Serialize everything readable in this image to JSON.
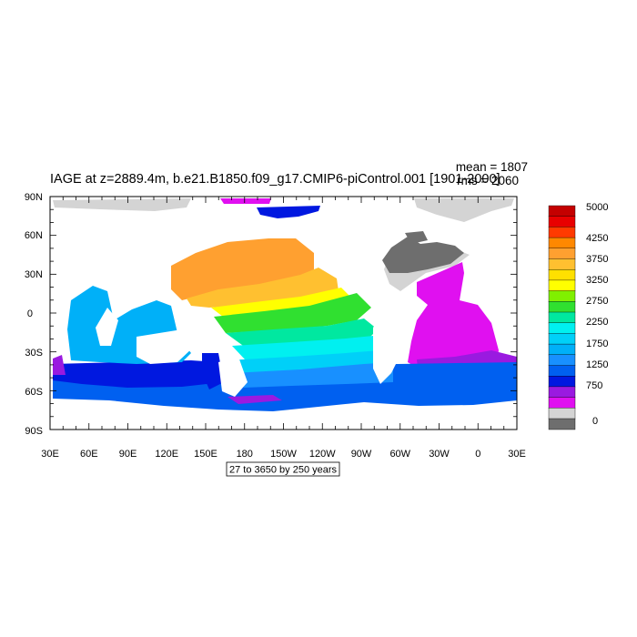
{
  "title": "IAGE at z=2889.4m, b.e21.B1850.f09_g17.CMIP6-piControl.001 [1901-2000]",
  "stats": {
    "mean": "mean = 1807",
    "rms": "rms = 2060"
  },
  "note": "27 to 3650 by 250 years",
  "axes": {
    "lat_ticks": [
      "90N",
      "60N",
      "30N",
      "0",
      "30S",
      "60S",
      "90S"
    ],
    "lon_ticks": [
      "30E",
      "60E",
      "90E",
      "120E",
      "150E",
      "180",
      "150W",
      "120W",
      "90W",
      "60W",
      "30W",
      "0",
      "30E"
    ]
  },
  "colorbar": {
    "labels": [
      "5000",
      "4250",
      "3750",
      "3250",
      "2750",
      "2250",
      "1750",
      "1250",
      "750",
      "0"
    ],
    "colors": [
      "#c40000",
      "#e80000",
      "#ff3a00",
      "#ff8800",
      "#ffa030",
      "#ffc030",
      "#ffe000",
      "#ffff00",
      "#80f000",
      "#30e030",
      "#00e8a0",
      "#00f0f0",
      "#00d0f8",
      "#00b0f8",
      "#1890ff",
      "#0060f0",
      "#0018e0",
      "#9a1ae0",
      "#e010f0",
      "#d4d4d4",
      "#6e6e6e"
    ]
  },
  "colors": {
    "land": "#ffffff",
    "gray_light": "#d4d4d4",
    "gray_dark": "#6e6e6e",
    "orange": "#ffa030",
    "gold": "#ffc030",
    "yellow": "#ffff00",
    "green": "#30e030",
    "green_yellow": "#80f000",
    "turquoise": "#00e8a0",
    "cyan": "#00f0f0",
    "sky": "#00d0f8",
    "light_blue": "#00b0f8",
    "mid_blue": "#1890ff",
    "blue": "#0060f0",
    "deep_blue": "#0018e0",
    "violet": "#9a1ae0",
    "magenta": "#e010f0"
  }
}
